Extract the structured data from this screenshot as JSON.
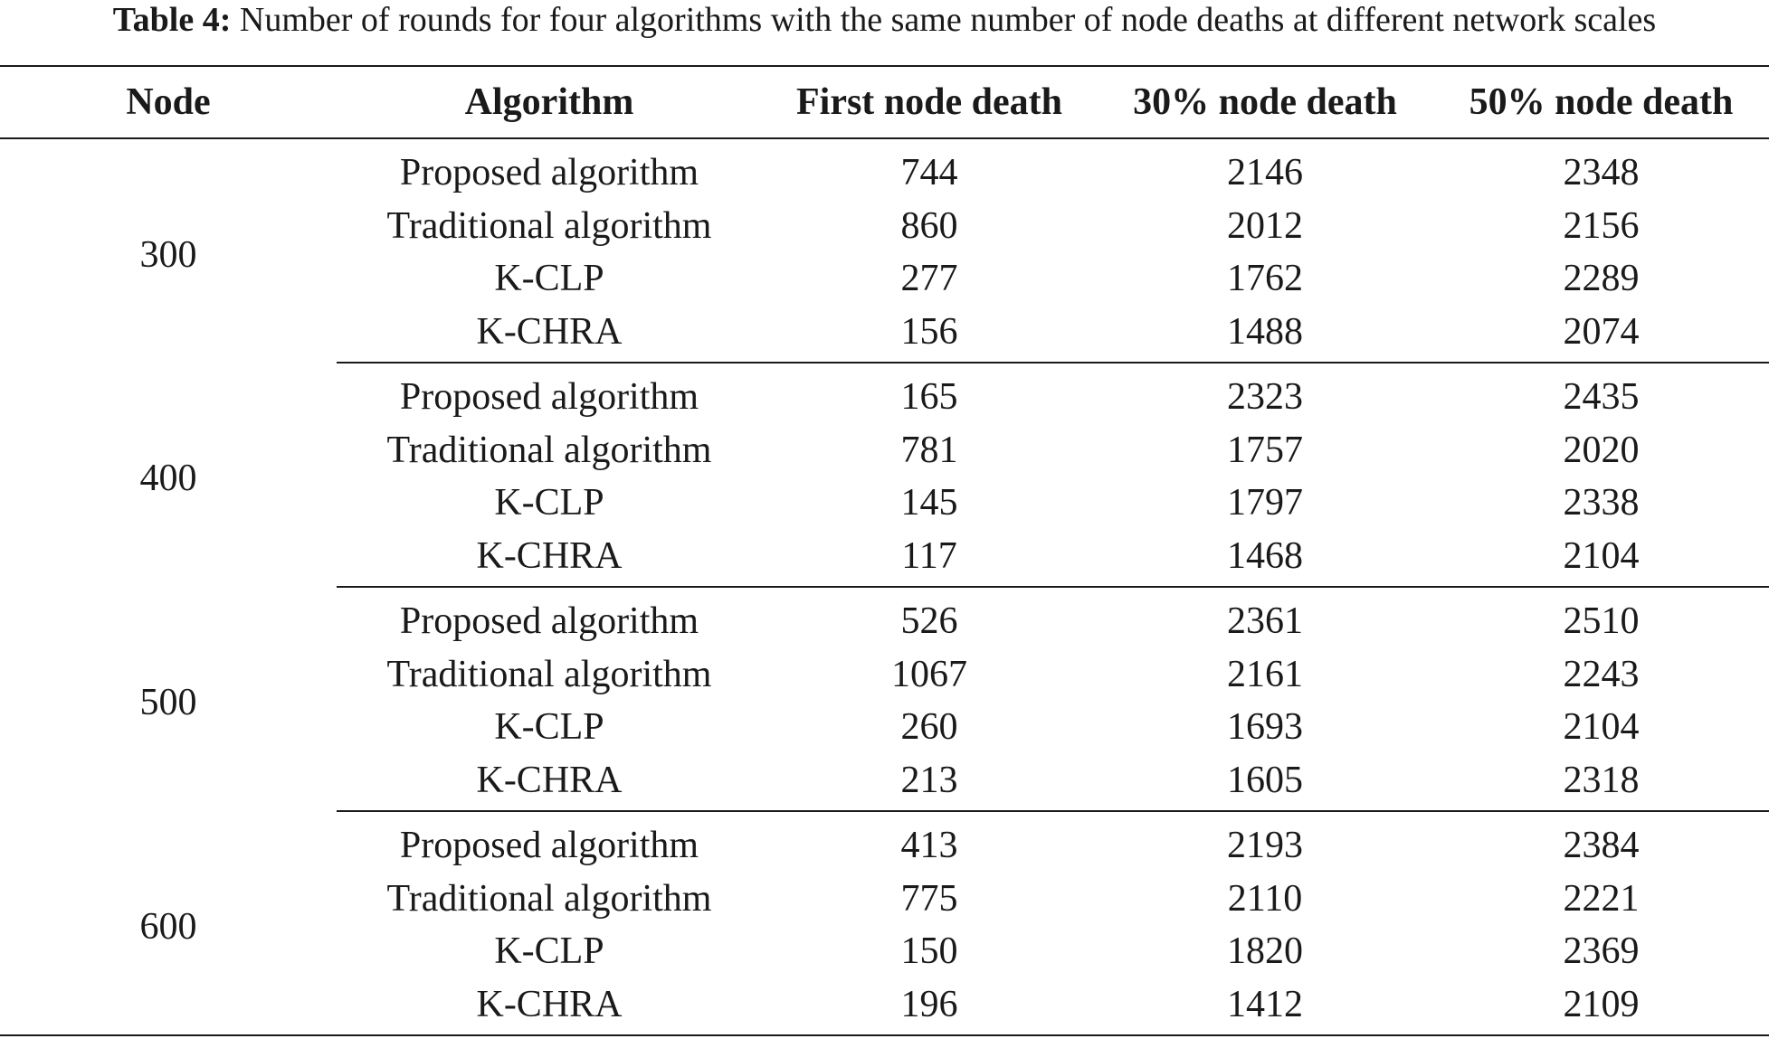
{
  "caption": {
    "label": "Table 4:",
    "text": " Number of rounds for four algorithms with the same number of node deaths at different network scales"
  },
  "headers": {
    "node": "Node",
    "algorithm": "Algorithm",
    "first": "First node death",
    "p30": "30% node death",
    "p50": "50% node death"
  },
  "groups": [
    {
      "node": "300",
      "rows": [
        {
          "algorithm": "Proposed algorithm",
          "first": "744",
          "p30": "2146",
          "p50": "2348"
        },
        {
          "algorithm": "Traditional algorithm",
          "first": "860",
          "p30": "2012",
          "p50": "2156"
        },
        {
          "algorithm": "K-CLP",
          "first": "277",
          "p30": "1762",
          "p50": "2289"
        },
        {
          "algorithm": "K-CHRA",
          "first": "156",
          "p30": "1488",
          "p50": "2074"
        }
      ]
    },
    {
      "node": "400",
      "rows": [
        {
          "algorithm": "Proposed algorithm",
          "first": "165",
          "p30": "2323",
          "p50": "2435"
        },
        {
          "algorithm": "Traditional algorithm",
          "first": "781",
          "p30": "1757",
          "p50": "2020"
        },
        {
          "algorithm": "K-CLP",
          "first": "145",
          "p30": "1797",
          "p50": "2338"
        },
        {
          "algorithm": "K-CHRA",
          "first": "117",
          "p30": "1468",
          "p50": "2104"
        }
      ]
    },
    {
      "node": "500",
      "rows": [
        {
          "algorithm": "Proposed algorithm",
          "first": "526",
          "p30": "2361",
          "p50": "2510"
        },
        {
          "algorithm": "Traditional algorithm",
          "first": "1067",
          "p30": "2161",
          "p50": "2243"
        },
        {
          "algorithm": "K-CLP",
          "first": "260",
          "p30": "1693",
          "p50": "2104"
        },
        {
          "algorithm": "K-CHRA",
          "first": "213",
          "p30": "1605",
          "p50": "2318"
        }
      ]
    },
    {
      "node": "600",
      "rows": [
        {
          "algorithm": "Proposed algorithm",
          "first": "413",
          "p30": "2193",
          "p50": "2384"
        },
        {
          "algorithm": "Traditional algorithm",
          "first": "775",
          "p30": "2110",
          "p50": "2221"
        },
        {
          "algorithm": "K-CLP",
          "first": "150",
          "p30": "1820",
          "p50": "2369"
        },
        {
          "algorithm": "K-CHRA",
          "first": "196",
          "p30": "1412",
          "p50": "2109"
        }
      ]
    }
  ]
}
